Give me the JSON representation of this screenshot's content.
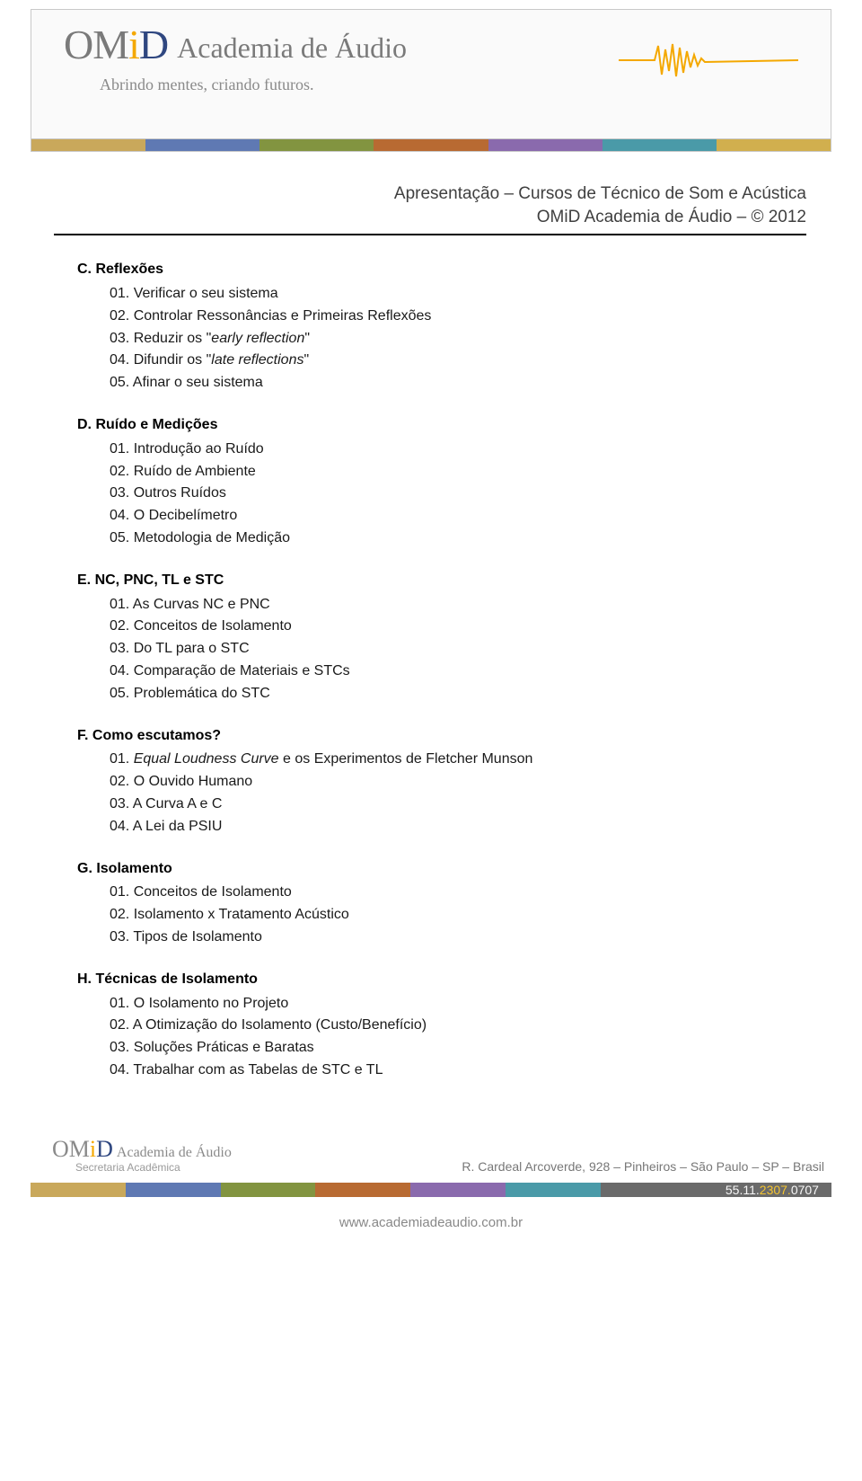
{
  "brand": {
    "omid": "OM",
    "omid_i": "i",
    "omid_d": "D",
    "academia": "Academia de Áudio",
    "tagline": "Abrindo mentes, criando futuros.",
    "secretaria": "Secretaria Acadêmica"
  },
  "stripe_colors": [
    "#c9a85b",
    "#5f79b3",
    "#829440",
    "#b86a32",
    "#8a6aad",
    "#4a9aa8",
    "#d1af4e"
  ],
  "footer_stripe_colors": [
    "#c9a85b",
    "#5f79b3",
    "#829440",
    "#b86a32",
    "#8a6aad",
    "#4a9aa8"
  ],
  "subtitle": {
    "line1": "Apresentação – Cursos de Técnico de Som e Acústica",
    "line2": "OMiD Academia de Áudio – © 2012"
  },
  "sections": [
    {
      "id": "c",
      "title": "C. Reflexões",
      "items": [
        {
          "n": "01.",
          "t": "Verificar o seu sistema"
        },
        {
          "n": "02.",
          "t": "Controlar Ressonâncias e Primeiras Reflexões"
        },
        {
          "n": "03.",
          "pre": "Reduzir os \"",
          "it": "early reflection",
          "post": "\""
        },
        {
          "n": "04.",
          "pre": "Difundir os \"",
          "it": "late reflections",
          "post": "\""
        },
        {
          "n": "05.",
          "t": "Afinar o seu sistema"
        }
      ]
    },
    {
      "id": "d",
      "title": "D. Ruído e Medições",
      "items": [
        {
          "n": "01.",
          "t": "Introdução ao Ruído"
        },
        {
          "n": "02.",
          "t": "Ruído de Ambiente"
        },
        {
          "n": "03.",
          "t": "Outros Ruídos"
        },
        {
          "n": "04.",
          "t": "O Decibelímetro"
        },
        {
          "n": "05.",
          "t": "Metodologia de Medição"
        }
      ]
    },
    {
      "id": "e",
      "title": "E. NC, PNC, TL e STC",
      "items": [
        {
          "n": "01.",
          "t": "As Curvas NC e PNC"
        },
        {
          "n": "02.",
          "t": "Conceitos de Isolamento"
        },
        {
          "n": "03.",
          "t": "Do TL para o STC"
        },
        {
          "n": "04.",
          "t": "Comparação de Materiais e STCs"
        },
        {
          "n": "05.",
          "t": "Problemática do STC"
        }
      ]
    },
    {
      "id": "f",
      "title": "F. Como escutamos?",
      "items": [
        {
          "n": "01.",
          "it": "Equal Loudness Curve",
          "post": " e os Experimentos de Fletcher Munson"
        },
        {
          "n": "02.",
          "t": "O Ouvido Humano"
        },
        {
          "n": "03.",
          "t": "A Curva A e C"
        },
        {
          "n": "04.",
          "t": "A Lei da PSIU"
        }
      ]
    },
    {
      "id": "g",
      "title": "G. Isolamento",
      "items": [
        {
          "n": "01.",
          "t": "Conceitos de Isolamento"
        },
        {
          "n": "02.",
          "t": "Isolamento x Tratamento Acústico"
        },
        {
          "n": "03.",
          "t": "Tipos de Isolamento"
        }
      ]
    },
    {
      "id": "h",
      "title": "H. Técnicas de Isolamento",
      "items": [
        {
          "n": "01.",
          "t": "O Isolamento no Projeto"
        },
        {
          "n": "02.",
          "t": "A Otimização do Isolamento (Custo/Benefício)"
        },
        {
          "n": "03.",
          "t": "Soluções Práticas e Baratas"
        },
        {
          "n": "04.",
          "t": "Trabalhar com as Tabelas de STC e TL"
        }
      ]
    }
  ],
  "footer": {
    "address": "R. Cardeal Arcoverde, 928 – Pinheiros – São Paulo – SP – Brasil",
    "phone_pre": "55.11.",
    "phone_mid": "2307.",
    "phone_post": "0707",
    "url": "www.academiadeaudio.com.br"
  }
}
